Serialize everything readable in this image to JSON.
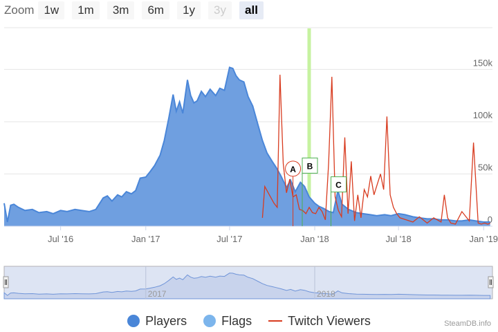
{
  "zoom": {
    "label": "Zoom",
    "buttons": [
      {
        "label": "1w",
        "state": "normal"
      },
      {
        "label": "1m",
        "state": "normal"
      },
      {
        "label": "3m",
        "state": "normal"
      },
      {
        "label": "6m",
        "state": "normal"
      },
      {
        "label": "1y",
        "state": "normal"
      },
      {
        "label": "3y",
        "state": "disabled"
      },
      {
        "label": "all",
        "state": "active"
      }
    ]
  },
  "chart_data": {
    "type": "area",
    "x_ticks": [
      "Jul '16",
      "Jan '17",
      "Jul '17",
      "Jan '18",
      "Jul '18",
      "Jan '19"
    ],
    "y_ticks": [
      "0",
      "50k",
      "100k",
      "150k"
    ],
    "ylim": [
      0,
      190000
    ],
    "grid": true,
    "legend_position": "bottom",
    "colors": {
      "players": "#4a86d8",
      "players_fill": "#6f9fe0",
      "flags": "#7cb5ec",
      "twitch": "#d83b1f",
      "flag_border": "#4caf50",
      "flag_line": "#c6f2a0"
    },
    "series": [
      {
        "name": "Players",
        "x": [
          "2016-03-01",
          "2016-03-08",
          "2016-03-15",
          "2016-03-22",
          "2016-04-01",
          "2016-04-15",
          "2016-05-01",
          "2016-05-15",
          "2016-06-01",
          "2016-06-15",
          "2016-07-01",
          "2016-07-15",
          "2016-08-01",
          "2016-08-15",
          "2016-09-01",
          "2016-09-15",
          "2016-10-01",
          "2016-10-10",
          "2016-10-20",
          "2016-11-01",
          "2016-11-10",
          "2016-11-20",
          "2016-12-01",
          "2016-12-10",
          "2016-12-20",
          "2017-01-01",
          "2017-01-10",
          "2017-01-20",
          "2017-02-01",
          "2017-02-10",
          "2017-02-20",
          "2017-03-01",
          "2017-03-08",
          "2017-03-15",
          "2017-03-22",
          "2017-04-01",
          "2017-04-08",
          "2017-04-15",
          "2017-04-22",
          "2017-05-01",
          "2017-05-10",
          "2017-05-20",
          "2017-06-01",
          "2017-06-10",
          "2017-06-20",
          "2017-07-01",
          "2017-07-08",
          "2017-07-15",
          "2017-07-22",
          "2017-08-01",
          "2017-08-10",
          "2017-08-20",
          "2017-09-01",
          "2017-09-10",
          "2017-09-20",
          "2017-10-01",
          "2017-10-10",
          "2017-10-20",
          "2017-11-01",
          "2017-11-10",
          "2017-11-20",
          "2017-12-01",
          "2017-12-10",
          "2017-12-20",
          "2018-01-01",
          "2018-01-10",
          "2018-01-20",
          "2018-02-01",
          "2018-02-10",
          "2018-02-20",
          "2018-03-01",
          "2018-03-15",
          "2018-04-01",
          "2018-04-15",
          "2018-05-01",
          "2018-05-15",
          "2018-06-01",
          "2018-06-15",
          "2018-07-01",
          "2018-07-15",
          "2018-08-01",
          "2018-08-15",
          "2018-09-01",
          "2018-09-15",
          "2018-10-01",
          "2018-10-15",
          "2018-11-01",
          "2018-11-15",
          "2018-12-01",
          "2018-12-15",
          "2019-01-01",
          "2019-01-15"
        ],
        "values": [
          22000,
          4000,
          20000,
          21000,
          18000,
          15000,
          16000,
          13000,
          14000,
          12000,
          15000,
          14000,
          16000,
          15000,
          14000,
          16000,
          27000,
          29000,
          24000,
          30000,
          28000,
          33000,
          31000,
          34000,
          46000,
          47000,
          52000,
          58000,
          68000,
          82000,
          104000,
          126000,
          110000,
          119000,
          108000,
          140000,
          125000,
          118000,
          120000,
          129000,
          124000,
          131000,
          125000,
          132000,
          130000,
          152000,
          151000,
          144000,
          140000,
          138000,
          124000,
          115000,
          96000,
          82000,
          70000,
          62000,
          56000,
          48000,
          37000,
          44000,
          33000,
          42000,
          38000,
          28000,
          22000,
          19000,
          17000,
          14000,
          13000,
          34000,
          21000,
          16000,
          13000,
          12000,
          11000,
          10000,
          11000,
          10000,
          12000,
          11000,
          9000,
          8000,
          7000,
          7000,
          6000,
          6000,
          5000,
          5000,
          6000,
          5000,
          4000,
          4000
        ]
      },
      {
        "name": "Twitch Viewers",
        "x": [
          "2017-09-10",
          "2017-09-15",
          "2017-09-25",
          "2017-10-05",
          "2017-10-12",
          "2017-10-18",
          "2017-10-25",
          "2017-11-01",
          "2017-11-08",
          "2017-11-15",
          "2017-11-22",
          "2017-11-29",
          "2017-12-06",
          "2017-12-13",
          "2017-12-20",
          "2017-12-27",
          "2018-01-03",
          "2018-01-10",
          "2018-01-17",
          "2018-01-24",
          "2018-01-31",
          "2018-02-07",
          "2018-02-14",
          "2018-02-21",
          "2018-02-28",
          "2018-03-07",
          "2018-03-14",
          "2018-03-21",
          "2018-03-28",
          "2018-04-04",
          "2018-04-11",
          "2018-04-18",
          "2018-04-25",
          "2018-05-02",
          "2018-05-09",
          "2018-05-16",
          "2018-05-23",
          "2018-05-30",
          "2018-06-06",
          "2018-06-13",
          "2018-06-20",
          "2018-06-27",
          "2018-07-04",
          "2018-07-18",
          "2018-08-01",
          "2018-08-15",
          "2018-09-01",
          "2018-09-15",
          "2018-10-01",
          "2018-10-08",
          "2018-10-15",
          "2018-10-22",
          "2018-11-01",
          "2018-11-15",
          "2018-12-01",
          "2018-12-10",
          "2018-12-20",
          "2018-12-27",
          "2019-01-03",
          "2019-01-10",
          "2019-01-15"
        ],
        "values": [
          8000,
          38000,
          30000,
          22000,
          18000,
          145000,
          60000,
          32000,
          45000,
          28000,
          30000,
          16000,
          15000,
          12000,
          18000,
          13000,
          12000,
          18000,
          14000,
          6000,
          60000,
          143000,
          28000,
          15000,
          9000,
          85000,
          12000,
          62000,
          5000,
          30000,
          8000,
          35000,
          28000,
          48000,
          30000,
          40000,
          50000,
          35000,
          105000,
          30000,
          18000,
          12000,
          8000,
          6000,
          4000,
          9000,
          3000,
          8000,
          4000,
          30000,
          8000,
          3000,
          2000,
          14000,
          5000,
          80000,
          3000,
          2000,
          3000,
          2000,
          3000
        ]
      }
    ],
    "flags": [
      {
        "label": "A",
        "x": "2017-11-15",
        "y": 55000,
        "shape": "circle"
      },
      {
        "label": "B",
        "x": "2017-12-20",
        "y": 58000,
        "shape": "square"
      },
      {
        "label": "C",
        "x": "2018-02-20",
        "y": 40000,
        "shape": "square"
      }
    ],
    "highlight_band": {
      "x": "2017-12-20"
    },
    "navigator": {
      "labels": [
        "2017",
        "2018"
      ],
      "x_range": [
        "2016-03-01",
        "2019-01-20"
      ]
    }
  },
  "legend": {
    "items": [
      {
        "name": "Players",
        "symbol": "dot",
        "color": "#4a86d8"
      },
      {
        "name": "Flags",
        "symbol": "dot",
        "color": "#7cb5ec"
      },
      {
        "name": "Twitch Viewers",
        "symbol": "line",
        "color": "#d83b1f"
      }
    ]
  },
  "credit": "SteamDB.info"
}
